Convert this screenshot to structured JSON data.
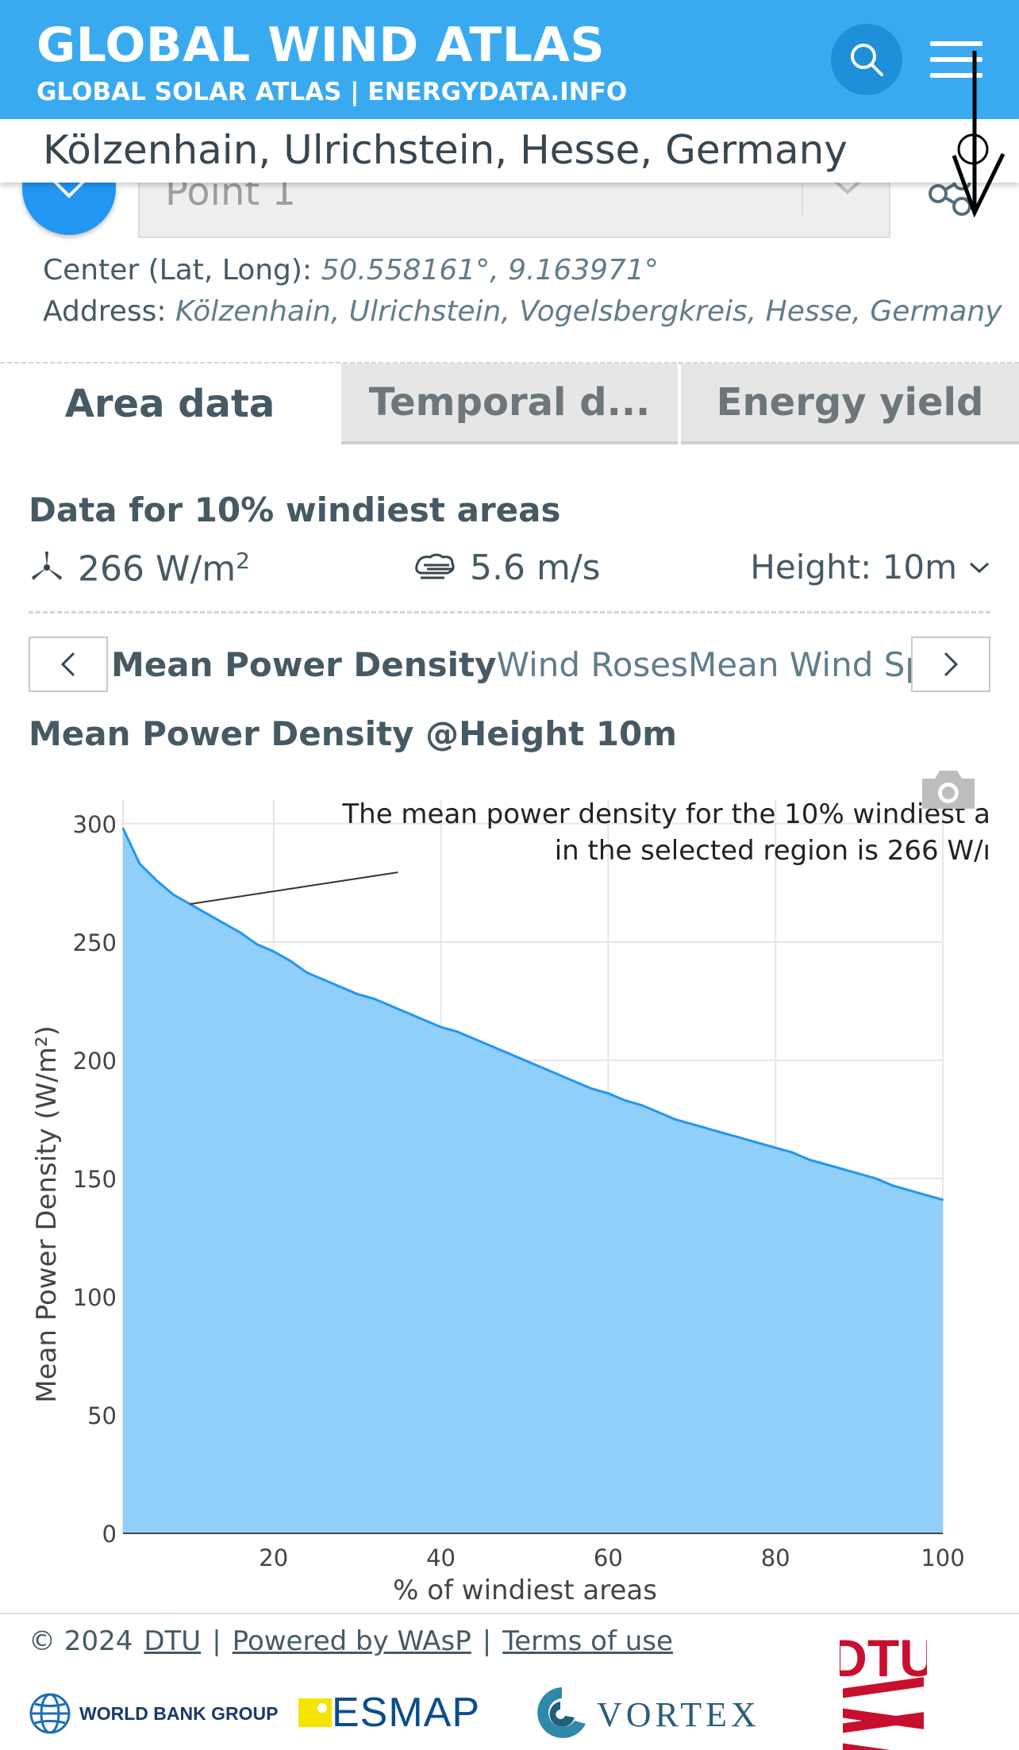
{
  "header": {
    "title": "GLOBAL WIND ATLAS",
    "subtitle": "GLOBAL SOLAR ATLAS | ENERGYDATA.INFO"
  },
  "location": {
    "name": "Kölzenhain, Ulrichstein, Hesse, Germany",
    "point_label": "Point 1",
    "center_label": "Center (Lat, Long):",
    "center_value": "50.558161°, 9.163971°",
    "address_label": "Address:",
    "address_value": "Kölzenhain, Ulrichstein, Vogelsbergkreis, Hesse, Germany"
  },
  "tabs": [
    {
      "label": "Area data",
      "active": true
    },
    {
      "label": "Temporal d...",
      "active": false
    },
    {
      "label": "Energy yield",
      "active": false
    }
  ],
  "area": {
    "heading": "Data for 10% windiest areas",
    "power_value": "266 W/m",
    "power_sup": "2",
    "speed_value": "5.6 m/s",
    "height_label": "Height: 10m"
  },
  "chart_tabs": [
    {
      "label": "Mean Power Density",
      "active": true
    },
    {
      "label": "Wind Roses",
      "active": false
    },
    {
      "label": "Mean Wind Speed",
      "active": false
    }
  ],
  "chart_title": "Mean Power Density @Height 10m",
  "chart_data": {
    "type": "area",
    "xlabel": "% of windiest areas",
    "ylabel": "Mean Power Density (W/m²)",
    "xlim": [
      2,
      100
    ],
    "ylim": [
      0,
      310
    ],
    "x_ticks": [
      20,
      40,
      60,
      80,
      100
    ],
    "y_ticks": [
      0,
      50,
      100,
      150,
      200,
      250,
      300
    ],
    "grid": true,
    "fill_color": "#90cff9",
    "line_color": "#2196f3",
    "annotation": {
      "line1": "The mean power density for the 10% windiest a",
      "line2": "in the selected region is 266 W/ı",
      "x": 10,
      "y": 266
    },
    "x": [
      2,
      4,
      6,
      8,
      10,
      12,
      14,
      16,
      18,
      20,
      22,
      24,
      26,
      28,
      30,
      32,
      34,
      36,
      38,
      40,
      42,
      44,
      46,
      48,
      50,
      52,
      54,
      56,
      58,
      60,
      62,
      64,
      66,
      68,
      70,
      72,
      74,
      76,
      78,
      80,
      82,
      84,
      86,
      88,
      90,
      92,
      94,
      96,
      98,
      100
    ],
    "y": [
      298,
      283,
      276,
      270,
      266,
      262,
      258,
      254,
      249,
      246,
      242,
      237,
      234,
      231,
      228,
      226,
      223,
      220,
      217,
      214,
      212,
      209,
      206,
      203,
      200,
      197,
      194,
      191,
      188,
      186,
      183,
      181,
      178,
      175,
      173,
      171,
      169,
      167,
      165,
      163,
      161,
      158,
      156,
      154,
      152,
      150,
      147,
      145,
      143,
      141
    ]
  },
  "footer": {
    "copyright": "© 2024",
    "links": [
      "DTU",
      "Powered by WAsP",
      "Terms of use"
    ],
    "sep": "|",
    "wb_text": "WORLD BANK GROUP",
    "esmap_text": "ESMAP",
    "vortex_text": "VORTEX",
    "dtu_text": "DTU"
  },
  "colors": {
    "header_bg": "#3aaaf0",
    "accent": "#2196f3",
    "text": "#455a64",
    "dtu_red": "#c8102e"
  }
}
